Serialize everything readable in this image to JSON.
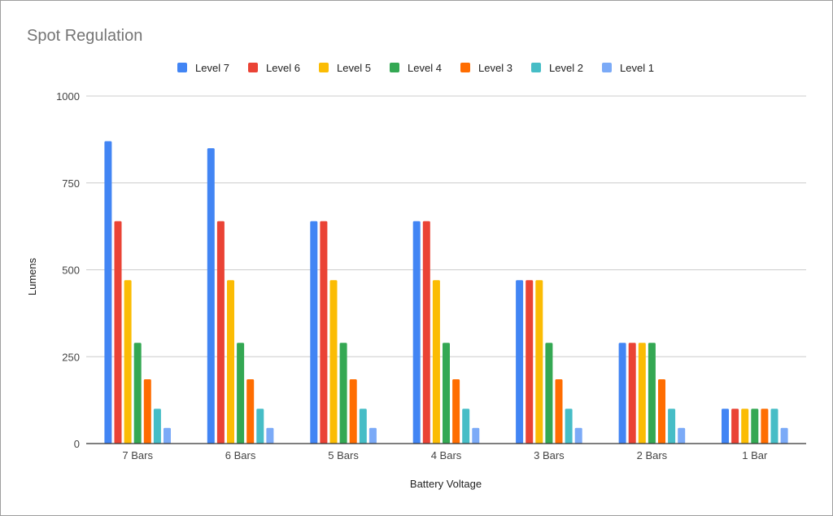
{
  "chart_data": {
    "type": "bar",
    "title": "Spot Regulation",
    "xlabel": "Battery Voltage",
    "ylabel": "Lumens",
    "ylim": [
      0,
      1000
    ],
    "yticks": [
      0,
      250,
      500,
      750,
      1000
    ],
    "grid": true,
    "legend_position": "top",
    "categories": [
      "7 Bars",
      "6 Bars",
      "5 Bars",
      "4 Bars",
      "3 Bars",
      "2 Bars",
      "1 Bar"
    ],
    "series": [
      {
        "name": "Level 7",
        "color": "#4285f4",
        "values": [
          870,
          850,
          640,
          640,
          470,
          290,
          100
        ]
      },
      {
        "name": "Level 6",
        "color": "#ea4335",
        "values": [
          640,
          640,
          640,
          640,
          470,
          290,
          100
        ]
      },
      {
        "name": "Level 5",
        "color": "#fbbc04",
        "values": [
          470,
          470,
          470,
          470,
          470,
          290,
          100
        ]
      },
      {
        "name": "Level 4",
        "color": "#34a853",
        "values": [
          290,
          290,
          290,
          290,
          290,
          290,
          100
        ]
      },
      {
        "name": "Level 3",
        "color": "#ff6d01",
        "values": [
          185,
          185,
          185,
          185,
          185,
          185,
          100
        ]
      },
      {
        "name": "Level 2",
        "color": "#46bdc6",
        "values": [
          100,
          100,
          100,
          100,
          100,
          100,
          100
        ]
      },
      {
        "name": "Level 1",
        "color": "#7baaf7",
        "values": [
          45,
          45,
          45,
          45,
          45,
          45,
          45
        ]
      }
    ]
  }
}
